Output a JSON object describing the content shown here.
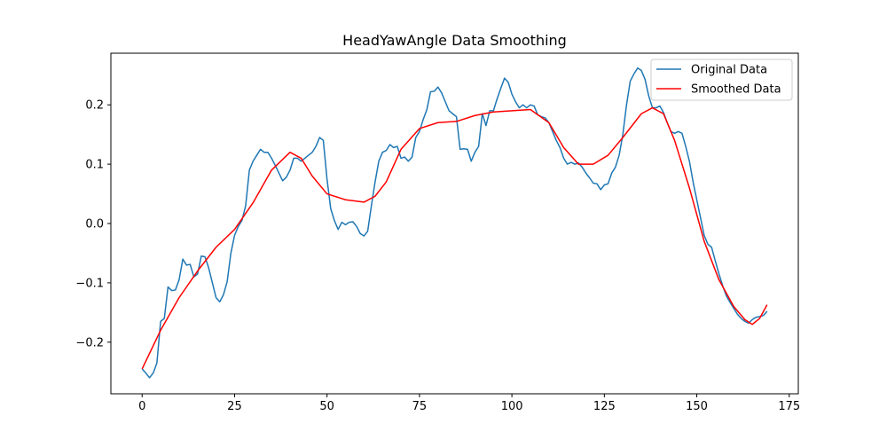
{
  "chart_data": {
    "type": "line",
    "title": "HeadYawAngle Data Smoothing",
    "xlabel": "",
    "ylabel": "",
    "xlim": [
      -8.45,
      177.45
    ],
    "ylim": [
      -0.287,
      0.287
    ],
    "xticks": [
      0,
      25,
      50,
      75,
      100,
      125,
      150,
      175
    ],
    "yticks": [
      -0.2,
      -0.1,
      0.0,
      0.1,
      0.2
    ],
    "ytick_labels": [
      "−0.2",
      "−0.1",
      "0.0",
      "0.1",
      "0.2"
    ],
    "grid": false,
    "legend_position": "top-right",
    "series": [
      {
        "name": "Original Data",
        "color": "#1f77b4",
        "x": [
          0,
          1,
          2,
          3,
          4,
          5,
          6,
          7,
          8,
          9,
          10,
          11,
          12,
          13,
          14,
          15,
          16,
          17,
          18,
          19,
          20,
          21,
          22,
          23,
          24,
          25,
          26,
          27,
          28,
          29,
          30,
          31,
          32,
          33,
          34,
          35,
          36,
          37,
          38,
          39,
          40,
          41,
          42,
          43,
          44,
          45,
          46,
          47,
          48,
          49,
          50,
          51,
          52,
          53,
          54,
          55,
          56,
          57,
          58,
          59,
          60,
          61,
          62,
          63,
          64,
          65,
          66,
          67,
          68,
          69,
          70,
          71,
          72,
          73,
          74,
          75,
          76,
          77,
          78,
          79,
          80,
          81,
          82,
          83,
          84,
          85,
          86,
          87,
          88,
          89,
          90,
          91,
          92,
          93,
          94,
          95,
          96,
          97,
          98,
          99,
          100,
          101,
          102,
          103,
          104,
          105,
          106,
          107,
          108,
          109,
          110,
          111,
          112,
          113,
          114,
          115,
          116,
          117,
          118,
          119,
          120,
          121,
          122,
          123,
          124,
          125,
          126,
          127,
          128,
          129,
          130,
          131,
          132,
          133,
          134,
          135,
          136,
          137,
          138,
          139,
          140,
          141,
          142,
          143,
          144,
          145,
          146,
          147,
          148,
          149,
          150,
          151,
          152,
          153,
          154,
          155,
          156,
          157,
          158,
          159,
          160,
          161,
          162,
          163,
          164,
          165,
          166,
          167,
          168,
          169
        ],
        "y": [
          -0.245,
          -0.252,
          -0.26,
          -0.252,
          -0.235,
          -0.165,
          -0.16,
          -0.107,
          -0.113,
          -0.112,
          -0.095,
          -0.06,
          -0.07,
          -0.069,
          -0.09,
          -0.085,
          -0.055,
          -0.056,
          -0.075,
          -0.1,
          -0.125,
          -0.132,
          -0.12,
          -0.098,
          -0.05,
          -0.02,
          -0.005,
          0.005,
          0.03,
          0.09,
          0.105,
          0.115,
          0.125,
          0.12,
          0.12,
          0.11,
          0.098,
          0.085,
          0.072,
          0.078,
          0.09,
          0.11,
          0.11,
          0.105,
          0.11,
          0.115,
          0.12,
          0.13,
          0.145,
          0.14,
          0.075,
          0.025,
          0.005,
          -0.01,
          0.002,
          -0.002,
          0.002,
          0.003,
          -0.005,
          -0.017,
          -0.021,
          -0.013,
          0.03,
          0.07,
          0.105,
          0.12,
          0.123,
          0.133,
          0.128,
          0.13,
          0.11,
          0.112,
          0.105,
          0.112,
          0.145,
          0.155,
          0.175,
          0.192,
          0.222,
          0.223,
          0.23,
          0.22,
          0.205,
          0.19,
          0.185,
          0.18,
          0.125,
          0.126,
          0.125,
          0.105,
          0.12,
          0.13,
          0.185,
          0.165,
          0.19,
          0.19,
          0.21,
          0.228,
          0.245,
          0.238,
          0.218,
          0.205,
          0.195,
          0.2,
          0.195,
          0.2,
          0.198,
          0.183,
          0.18,
          0.178,
          0.17,
          0.155,
          0.14,
          0.128,
          0.11,
          0.1,
          0.103,
          0.1,
          0.102,
          0.095,
          0.085,
          0.077,
          0.068,
          0.067,
          0.057,
          0.065,
          0.067,
          0.085,
          0.095,
          0.115,
          0.15,
          0.2,
          0.24,
          0.252,
          0.262,
          0.258,
          0.243,
          0.215,
          0.195,
          0.195,
          0.198,
          0.187,
          0.17,
          0.155,
          0.152,
          0.155,
          0.152,
          0.13,
          0.105,
          0.07,
          0.04,
          0.01,
          -0.02,
          -0.035,
          -0.04,
          -0.063,
          -0.085,
          -0.105,
          -0.122,
          -0.133,
          -0.143,
          -0.153,
          -0.16,
          -0.165,
          -0.168,
          -0.162,
          -0.158,
          -0.157,
          -0.155,
          -0.148
        ],
        "line_width": 1.5
      },
      {
        "name": "Smoothed Data",
        "color": "#ff0000",
        "x": [
          0,
          5,
          10,
          15,
          20,
          25,
          30,
          35,
          40,
          43,
          46,
          50,
          55,
          60,
          63,
          66,
          70,
          75,
          80,
          85,
          90,
          95,
          100,
          105,
          110,
          114,
          118,
          122,
          126,
          130,
          135,
          138,
          141,
          144,
          148,
          152,
          156,
          160,
          163,
          165,
          167,
          169
        ],
        "y": [
          -0.245,
          -0.18,
          -0.125,
          -0.08,
          -0.04,
          -0.01,
          0.035,
          0.09,
          0.12,
          0.11,
          0.08,
          0.05,
          0.04,
          0.036,
          0.046,
          0.07,
          0.125,
          0.16,
          0.17,
          0.172,
          0.182,
          0.188,
          0.19,
          0.192,
          0.17,
          0.128,
          0.1,
          0.1,
          0.115,
          0.145,
          0.185,
          0.195,
          0.185,
          0.14,
          0.06,
          -0.03,
          -0.095,
          -0.14,
          -0.162,
          -0.17,
          -0.16,
          -0.137
        ],
        "line_width": 1.5
      }
    ]
  }
}
